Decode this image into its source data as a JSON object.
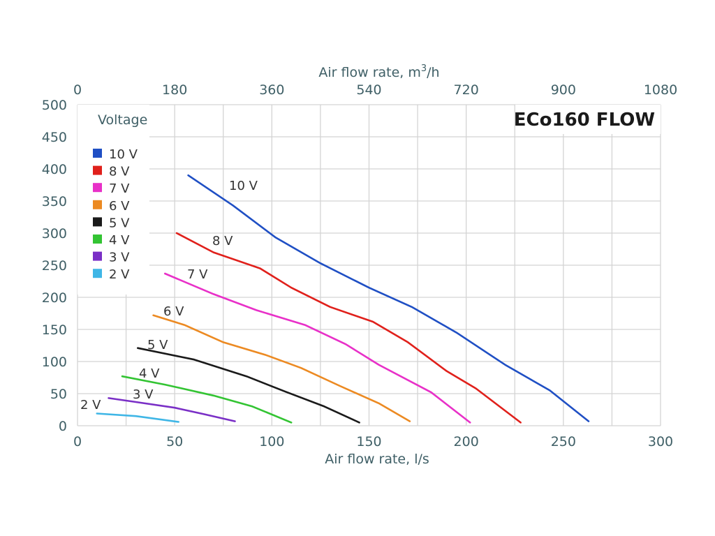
{
  "chart_data": {
    "type": "line",
    "title": "ECo160 FLOW",
    "xlabel": "Air flow rate, l/s",
    "x2label": "Air flow rate, m³/h",
    "ylabel": "",
    "xlim": [
      0,
      300
    ],
    "ylim": [
      0,
      500
    ],
    "x_ticks": [
      0,
      50,
      100,
      150,
      200,
      250,
      300
    ],
    "x2_ticks": [
      0,
      180,
      360,
      540,
      720,
      900,
      1080
    ],
    "y_ticks": [
      0,
      50,
      100,
      150,
      200,
      250,
      300,
      350,
      400,
      450,
      500
    ],
    "grid": true,
    "legend_title": "Voltage",
    "legend_position": "top-left",
    "series": [
      {
        "name": "10 V",
        "color": "#1f4fc4",
        "label": "10 V",
        "x": [
          57,
          80,
          102,
          125,
          150,
          172,
          195,
          220,
          243,
          263
        ],
        "y": [
          390,
          343,
          293,
          253,
          215,
          185,
          145,
          95,
          55,
          7
        ]
      },
      {
        "name": "8 V",
        "color": "#e0201b",
        "label": "8 V",
        "x": [
          51,
          70,
          94,
          110,
          130,
          152,
          170,
          190,
          205,
          228
        ],
        "y": [
          300,
          270,
          245,
          215,
          185,
          162,
          130,
          85,
          58,
          5
        ]
      },
      {
        "name": "7 V",
        "color": "#e830c8",
        "label": "7 V",
        "x": [
          45,
          70,
          92,
          117,
          138,
          155,
          182,
          202
        ],
        "y": [
          237,
          205,
          180,
          157,
          127,
          95,
          52,
          5
        ]
      },
      {
        "name": "6 V",
        "color": "#ec8a22",
        "label": "6 V",
        "x": [
          39,
          55,
          75,
          97,
          115,
          135,
          155,
          171
        ],
        "y": [
          172,
          157,
          130,
          110,
          90,
          62,
          35,
          7
        ]
      },
      {
        "name": "5 V",
        "color": "#1a1a1a",
        "label": "5 V",
        "x": [
          31,
          60,
          87,
          107,
          127,
          145
        ],
        "y": [
          121,
          103,
          77,
          53,
          30,
          5
        ]
      },
      {
        "name": "4 V",
        "color": "#33c433",
        "label": "4 V",
        "x": [
          23,
          45,
          70,
          90,
          110
        ],
        "y": [
          77,
          64,
          47,
          30,
          5
        ]
      },
      {
        "name": "3 V",
        "color": "#7a2fc6",
        "label": "3 V",
        "x": [
          16,
          30,
          50,
          65,
          81
        ],
        "y": [
          43,
          37,
          28,
          18,
          7
        ]
      },
      {
        "name": "2 V",
        "color": "#3fb6e6",
        "label": "2 V",
        "x": [
          10,
          30,
          52
        ],
        "y": [
          19,
          15,
          6
        ]
      }
    ]
  }
}
